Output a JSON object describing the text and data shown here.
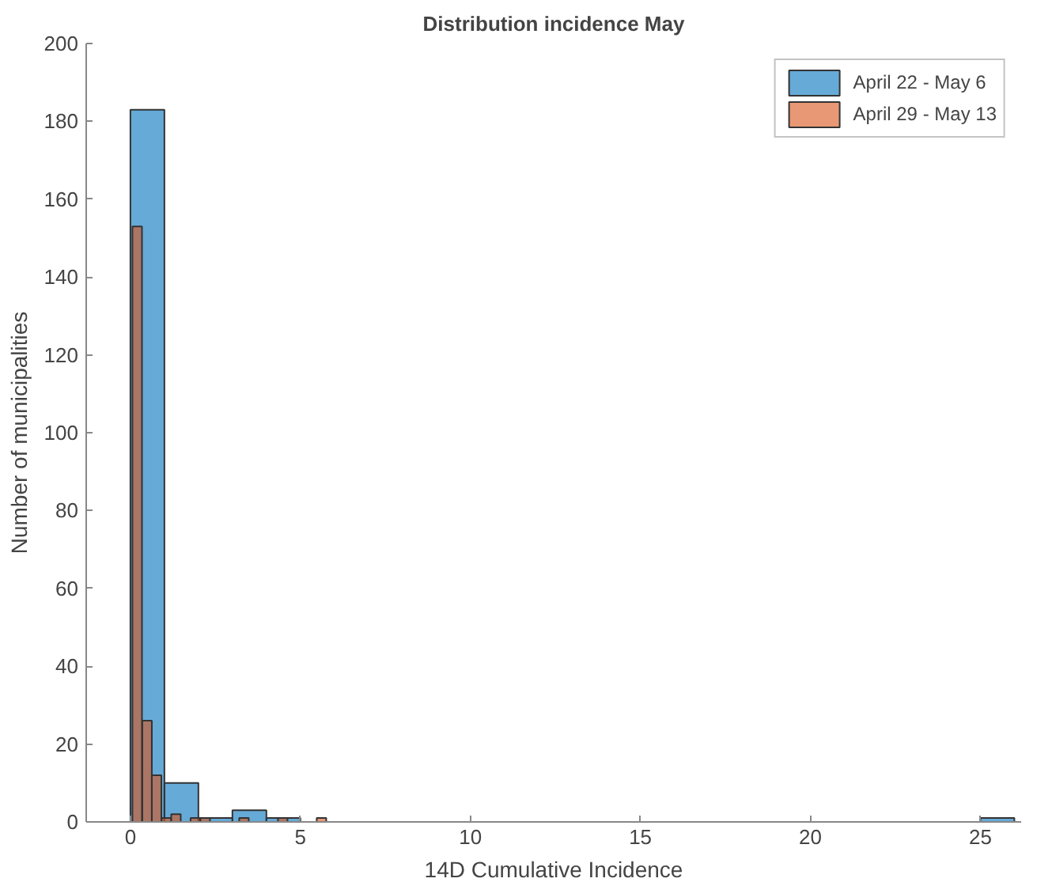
{
  "chart_data": {
    "type": "bar",
    "title": "Distribution incidence May",
    "xlabel": "14D Cumulative Incidence",
    "ylabel": "Number of municipalities",
    "series": [
      {
        "name": "April 22 - May 6",
        "color": "#66aad7",
        "x": [
          0.5,
          1.5,
          2.5,
          3.5,
          4.5,
          25.5
        ],
        "values": [
          183,
          10,
          1,
          3,
          1,
          1
        ]
      },
      {
        "name": "April 29 - May 13",
        "color": "#e89875",
        "x": [
          0.2,
          0.49,
          0.77,
          1.06,
          1.34,
          1.91,
          2.2,
          3.34,
          4.48,
          5.62
        ],
        "values": [
          153,
          26,
          12,
          1,
          2,
          1,
          1,
          1,
          1,
          1
        ]
      }
    ],
    "xlim": [
      -1.3,
      26.2
    ],
    "ylim": [
      0,
      200
    ],
    "xticks": [
      0,
      5,
      10,
      15,
      20,
      25
    ],
    "yticks": [
      0,
      20,
      40,
      60,
      80,
      100,
      120,
      140,
      160,
      180,
      200
    ],
    "legend": "top right"
  }
}
